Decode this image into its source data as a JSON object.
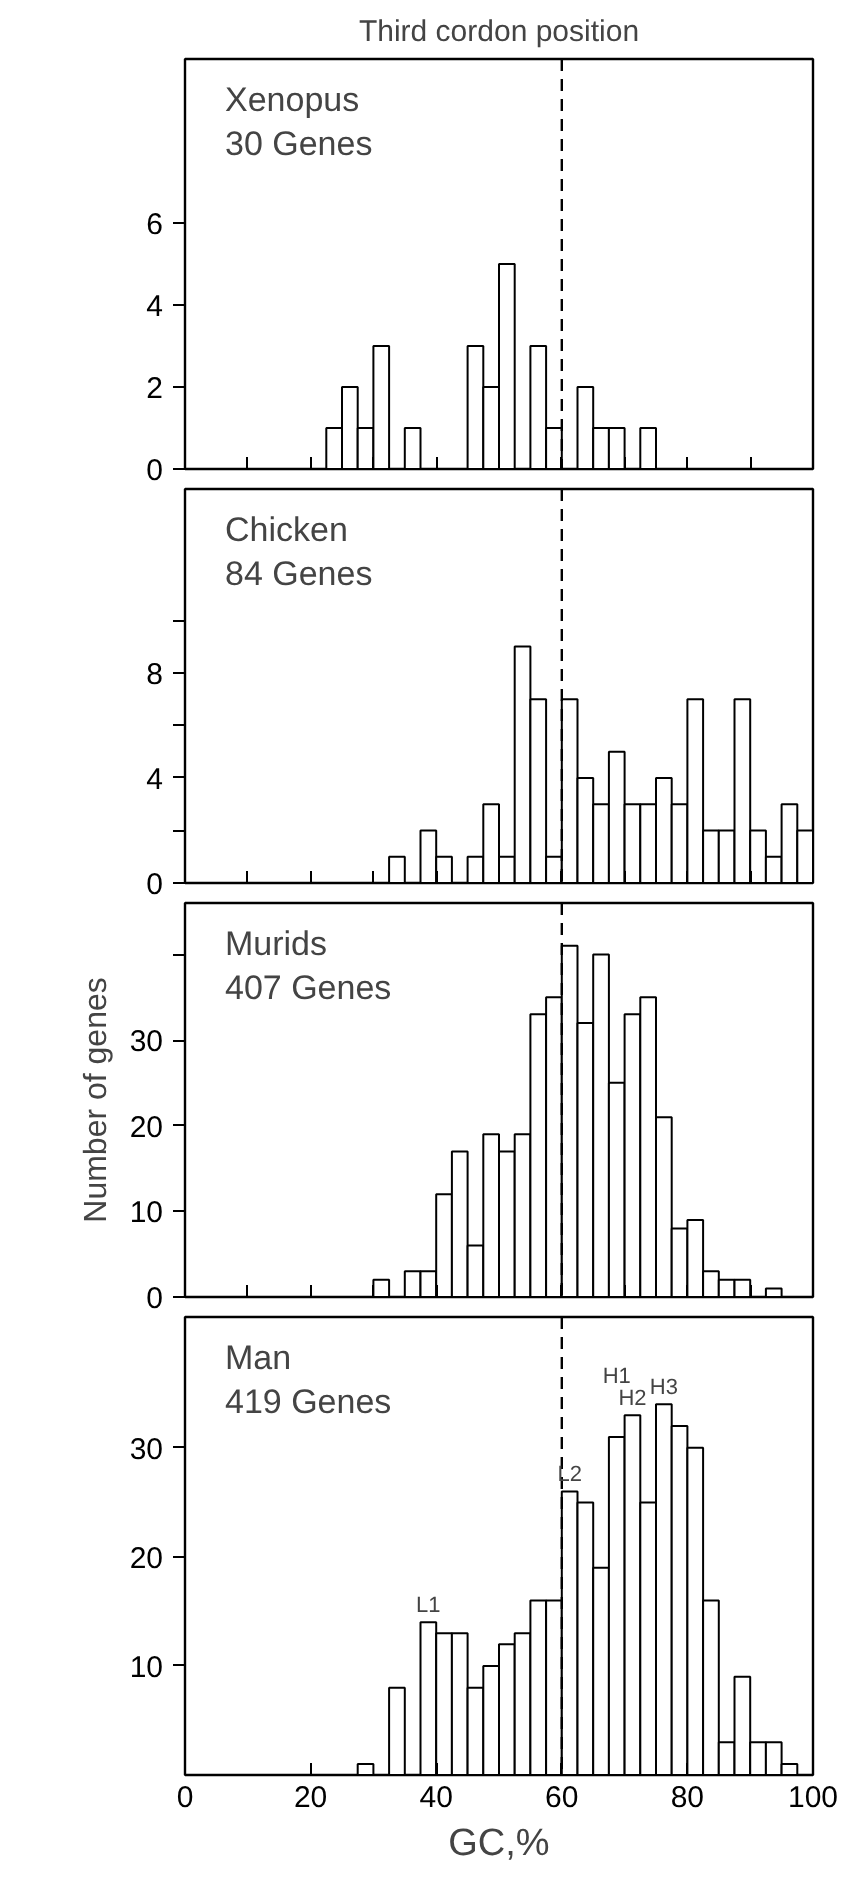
{
  "chart_data": [
    {
      "type": "histogram",
      "title": "Third cordon position",
      "annotations": [
        "Xenopus",
        "30 Genes"
      ],
      "bins": [
        22.5,
        25,
        27.5,
        30,
        32.5,
        35,
        37.5,
        40,
        42.5,
        45,
        47.5,
        50,
        52.5,
        55,
        57.5,
        60,
        62.5,
        65,
        67.5,
        70,
        72.5,
        75
      ],
      "values": [
        1,
        2,
        1,
        3,
        0,
        1,
        0,
        0,
        0,
        3,
        2,
        5,
        0,
        3,
        1,
        0,
        2,
        1,
        1,
        0,
        1
      ],
      "color": "#ffffff",
      "xlim": [
        0,
        100
      ],
      "ylim": [
        0,
        10
      ],
      "xticks": [
        0,
        10,
        20,
        30,
        40,
        50,
        60,
        70,
        80,
        90,
        100
      ],
      "yticks": [
        0,
        2,
        4,
        6
      ],
      "tick_labels": "y",
      "grid": false,
      "ref_lines": [
        {
          "axis": "x",
          "value": 60,
          "line_style": "dashed",
          "color": "#000000"
        }
      ]
    },
    {
      "type": "histogram",
      "annotations": [
        "Chicken",
        "84 Genes"
      ],
      "bins": [
        32.5,
        35,
        37.5,
        40,
        42.5,
        45,
        47.5,
        50,
        52.5,
        55,
        57.5,
        60,
        62.5,
        65,
        67.5,
        70,
        72.5,
        75,
        77.5,
        80,
        82.5,
        85,
        87.5,
        90,
        92.5,
        95,
        97.5,
        100
      ],
      "values": [
        1,
        0,
        2,
        1,
        0,
        1,
        3,
        1,
        9,
        7,
        1,
        7,
        4,
        3,
        5,
        3,
        3,
        4,
        3,
        7,
        2,
        2,
        7,
        2,
        1,
        3,
        2
      ],
      "color": "#ffffff",
      "xlim": [
        0,
        100
      ],
      "ylim": [
        0,
        15
      ],
      "xticks": [
        0,
        10,
        20,
        30,
        40,
        50,
        60,
        70,
        80,
        90,
        100
      ],
      "yticks": [
        0,
        {
          "value": 2,
          "label": null
        },
        4,
        {
          "value": 6,
          "label": null
        },
        8,
        {
          "value": 10,
          "label": null
        }
      ],
      "tick_labels": "y",
      "grid": false,
      "ref_lines": [
        {
          "axis": "x",
          "value": 60,
          "line_style": "dashed",
          "color": "#000000"
        }
      ]
    },
    {
      "type": "histogram",
      "ylabel": "Number of genes",
      "annotations": [
        "Murids",
        "407 Genes"
      ],
      "bins": [
        30,
        32.5,
        35,
        37.5,
        40,
        42.5,
        45,
        47.5,
        50,
        52.5,
        55,
        57.5,
        60,
        62.5,
        65,
        67.5,
        70,
        72.5,
        75,
        77.5,
        80,
        82.5,
        85,
        87.5,
        90,
        92.5,
        95
      ],
      "values": [
        2,
        0,
        3,
        3,
        12,
        17,
        6,
        19,
        17,
        19,
        33,
        35,
        41,
        32,
        40,
        25,
        33,
        35,
        21,
        8,
        9,
        3,
        2,
        2,
        0,
        1
      ],
      "color": "#ffffff",
      "xlim": [
        0,
        100
      ],
      "ylim": [
        0,
        46
      ],
      "xticks": [
        0,
        10,
        20,
        30,
        40,
        50,
        60,
        70,
        80,
        90,
        100
      ],
      "yticks": [
        0,
        10,
        20,
        30,
        {
          "value": 40,
          "label": null
        }
      ],
      "tick_labels": "y",
      "grid": false,
      "ref_lines": [
        {
          "axis": "x",
          "value": 60,
          "line_style": "dashed",
          "color": "#000000"
        }
      ]
    },
    {
      "type": "histogram",
      "xlabel": "GC,%",
      "annotations": [
        "Man",
        "419 Genes",
        {
          "text": "L1",
          "x": 38.75,
          "y": 14
        },
        {
          "text": "L2",
          "x": 61.25,
          "y": 26
        },
        {
          "text": "H2",
          "x": 71.25,
          "y": 33
        },
        {
          "text": "H1",
          "x": 68.75,
          "y": 31
        },
        {
          "text": "H3",
          "x": 76.25,
          "y": 34
        }
      ],
      "bins": [
        27.5,
        30,
        32.5,
        35,
        37.5,
        40,
        42.5,
        45,
        47.5,
        50,
        52.5,
        55,
        57.5,
        60,
        62.5,
        65,
        67.5,
        70,
        72.5,
        75,
        77.5,
        80,
        82.5,
        85,
        87.5,
        90,
        92.5,
        95,
        97.5
      ],
      "values": [
        1,
        0,
        8,
        0,
        14,
        13,
        13,
        8,
        10,
        12,
        13,
        16,
        16,
        26,
        25,
        19,
        31,
        33,
        25,
        34,
        32,
        30,
        16,
        3,
        9,
        3,
        3,
        1
      ],
      "color": "#ffffff",
      "xlim": [
        0,
        100
      ],
      "ylim": [
        0,
        42
      ],
      "xticks": [
        0,
        20,
        40,
        60,
        80,
        100
      ],
      "yticks": [
        10,
        20,
        30
      ],
      "grid": false,
      "ref_lines": [
        {
          "axis": "x",
          "value": 60,
          "line_style": "dashed",
          "color": "#000000"
        }
      ]
    }
  ]
}
